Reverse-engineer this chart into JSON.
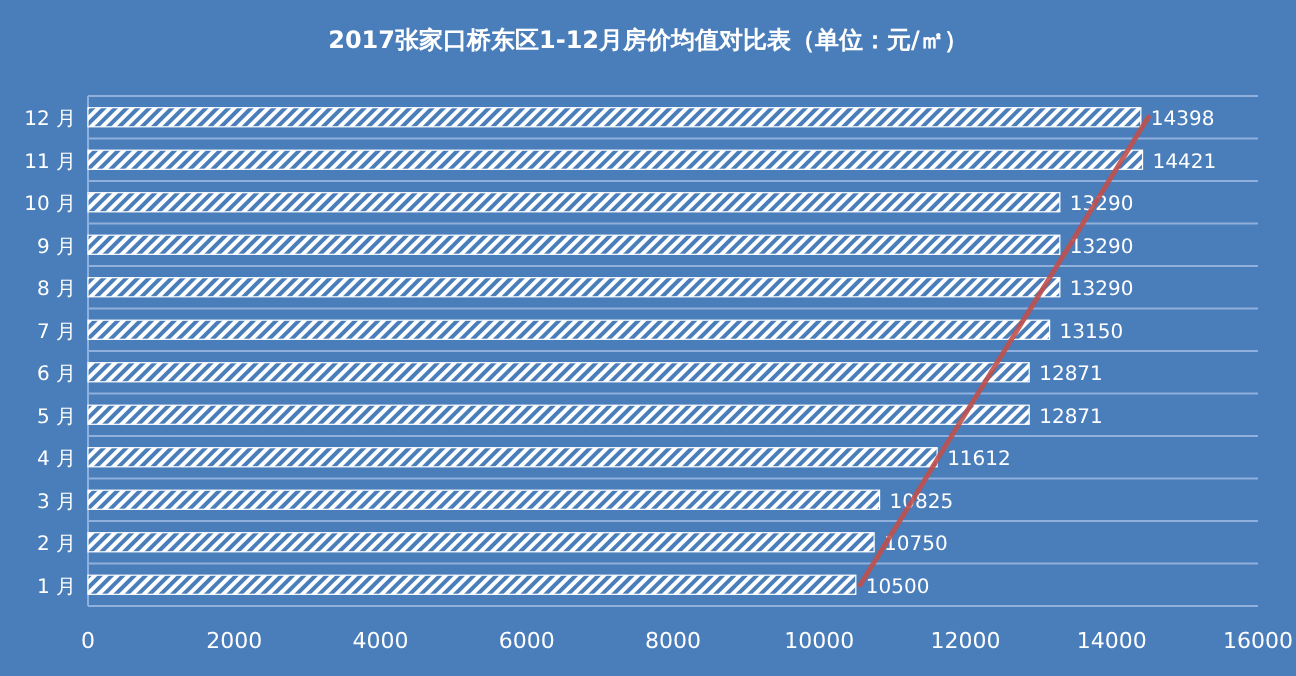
{
  "chart_data": {
    "type": "bar",
    "orientation": "horizontal",
    "title": "2017张家口桥东区1-12月房价均值对比表（单位：元/㎡）",
    "categories": [
      "12 月",
      "11 月",
      "10 月",
      "9 月",
      "8 月",
      "7 月",
      "6 月",
      "5 月",
      "4 月",
      "3 月",
      "2 月",
      "1 月"
    ],
    "series": [
      {
        "color": "#ffffff",
        "values": [
          14398,
          14421,
          13290,
          13290,
          13290,
          13150,
          12871,
          12871,
          11612,
          10825,
          10750,
          10500
        ],
        "value_labels": [
          "14398",
          "14421",
          "13290",
          "13290",
          "13290",
          "13150",
          "12871",
          "12871",
          "11612",
          "10825",
          "10750",
          "10500"
        ]
      },
      {
        "type": "line",
        "color": "#c0504d",
        "values": [
          14500,
          14140,
          13780,
          13430,
          13070,
          12710,
          12350,
          11990,
          11630,
          11280,
          10920,
          10560
        ]
      }
    ],
    "xlim": [
      0,
      16000
    ],
    "xticks": [
      0,
      2000,
      4000,
      6000,
      8000,
      10000,
      12000,
      14000,
      16000
    ],
    "grid": "y"
  }
}
